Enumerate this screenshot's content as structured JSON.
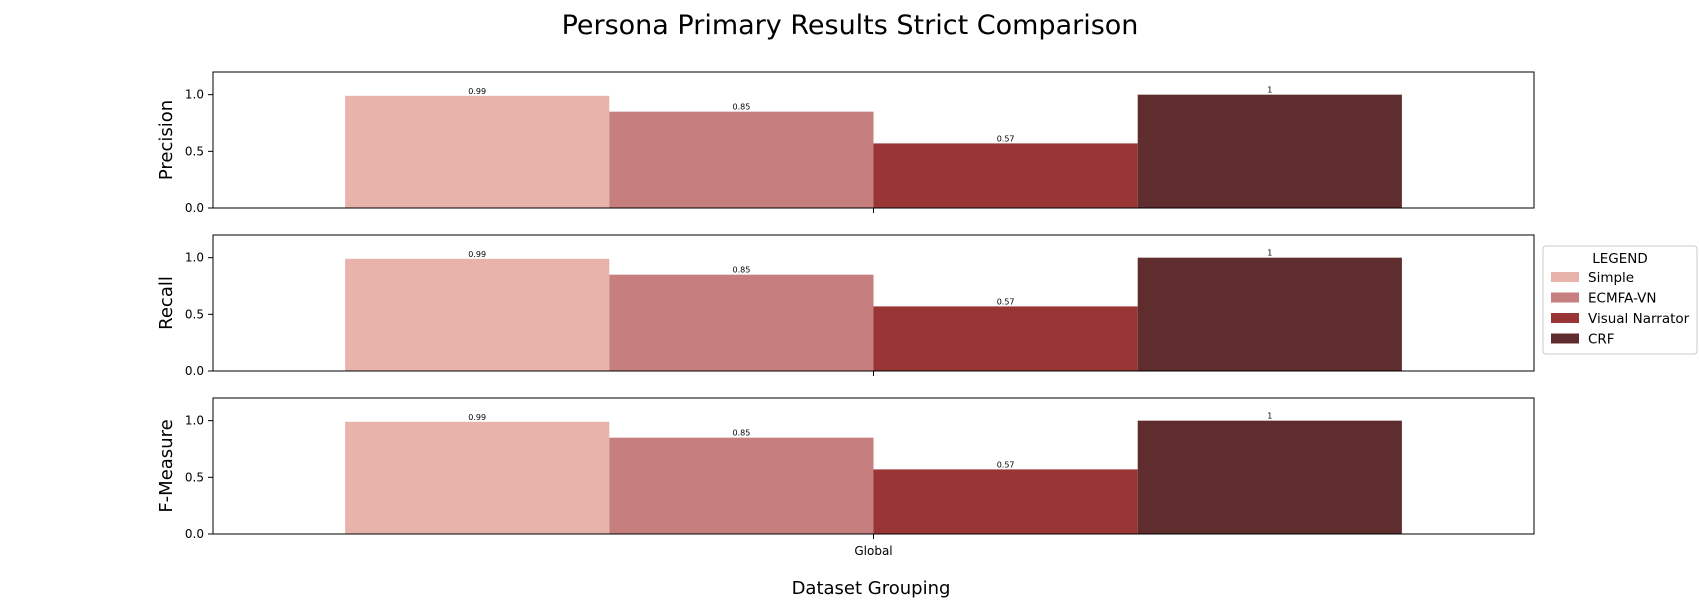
{
  "chart_data": {
    "type": "bar",
    "title": "Persona Primary Results Strict Comparison",
    "xlabel": "Dataset Grouping",
    "categories": [
      "Global"
    ],
    "ylim": [
      0,
      1.2
    ],
    "yticks": [
      "0.0",
      "0.5",
      "1.0"
    ],
    "grid": false,
    "legend": {
      "title": "LEGEND",
      "placement": "right"
    },
    "series": [
      {
        "name": "Simple",
        "color": "#e8b3ab"
      },
      {
        "name": "ECMFA-VN",
        "color": "#c67e7e"
      },
      {
        "name": "Visual Narrator",
        "color": "#9a3535"
      },
      {
        "name": "CRF",
        "color": "#602d2f"
      }
    ],
    "panels": [
      {
        "ylabel": "Precision",
        "values": [
          0.99,
          0.85,
          0.57,
          1.0
        ],
        "labels": [
          "0.99",
          "0.85",
          "0.57",
          "1"
        ]
      },
      {
        "ylabel": "Recall",
        "values": [
          0.99,
          0.85,
          0.57,
          1.0
        ],
        "labels": [
          "0.99",
          "0.85",
          "0.57",
          "1"
        ]
      },
      {
        "ylabel": "F-Measure",
        "values": [
          0.99,
          0.85,
          0.57,
          1.0
        ],
        "labels": [
          "0.99",
          "0.85",
          "0.57",
          "1"
        ]
      }
    ]
  }
}
